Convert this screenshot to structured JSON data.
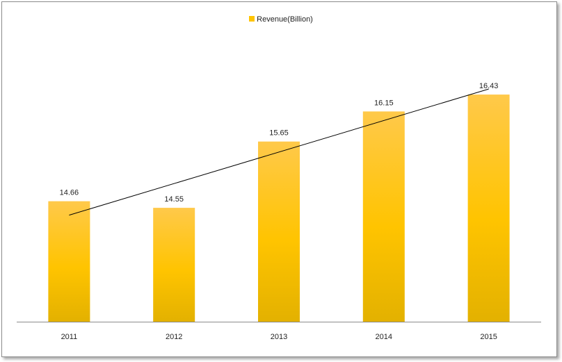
{
  "chart_data": {
    "type": "bar",
    "categories": [
      "2011",
      "2012",
      "2013",
      "2014",
      "2015"
    ],
    "series": [
      {
        "name": "Revenue(Billion)",
        "values": [
          14.66,
          14.55,
          15.65,
          16.15,
          16.43
        ]
      }
    ],
    "data_labels": [
      "14.66",
      "14.55",
      "15.65",
      "16.15",
      "16.43"
    ],
    "trendline": {
      "type": "linear",
      "from": {
        "x": "2011",
        "y": 14.66
      },
      "to": {
        "x": "2015",
        "y": 16.43
      }
    },
    "y_axis": {
      "visible": false,
      "gridlines": false,
      "ylim": [
        12.66,
        16.95
      ]
    },
    "legend": {
      "position": "top-center"
    },
    "colors": {
      "bar_top": "#ffc94a",
      "bar_mid": "#ffc400",
      "bar_bottom": "#e3b100",
      "legend": "#ffc400",
      "trendline": "#000000",
      "axis": "#8a8a8a"
    }
  }
}
